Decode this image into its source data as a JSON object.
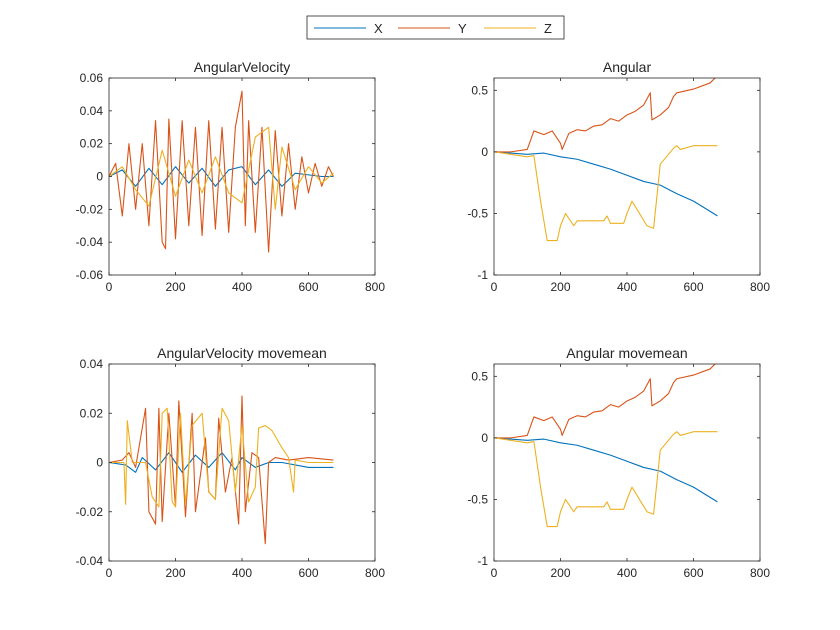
{
  "legend": {
    "placement": "top-center",
    "entries": [
      {
        "name": "X",
        "color": "#0072BD"
      },
      {
        "name": "Y",
        "color": "#D95319"
      },
      {
        "name": "Z",
        "color": "#EDB120"
      }
    ]
  },
  "chart_data": [
    {
      "type": "line",
      "title": "AngularVelocity",
      "xlim": [
        0,
        800
      ],
      "ylim": [
        -0.06,
        0.06
      ],
      "xticks": [
        0,
        200,
        400,
        600,
        800
      ],
      "xtick_labels": [
        "0",
        "200",
        "400",
        "600",
        "800"
      ],
      "yticks": [
        -0.06,
        -0.04,
        -0.02,
        0,
        0.02,
        0.04,
        0.06
      ],
      "ytick_labels": [
        "-0.06",
        "-0.04",
        "-0.02",
        "0",
        "0.02",
        "0.04",
        "0.06"
      ],
      "grid": false,
      "series": [
        {
          "name": "X",
          "color": "#0072BD",
          "x": [
            0,
            40,
            80,
            120,
            160,
            200,
            240,
            280,
            320,
            360,
            400,
            440,
            480,
            520,
            560,
            600,
            640,
            675
          ],
          "y": [
            0,
            0.004,
            -0.006,
            0.005,
            -0.005,
            0.006,
            -0.004,
            0.005,
            -0.006,
            0.004,
            0.006,
            -0.005,
            0.004,
            -0.006,
            0.002,
            0.001,
            0,
            0
          ]
        },
        {
          "name": "Y",
          "color": "#D95319",
          "x": [
            0,
            20,
            40,
            60,
            80,
            100,
            120,
            140,
            160,
            170,
            180,
            200,
            220,
            240,
            260,
            280,
            300,
            320,
            340,
            360,
            380,
            400,
            410,
            420,
            440,
            460,
            480,
            500,
            520,
            540,
            560,
            580,
            600,
            620,
            640,
            660,
            675
          ],
          "y": [
            0,
            0.008,
            -0.024,
            0.02,
            -0.02,
            0.02,
            -0.03,
            0.034,
            -0.04,
            -0.044,
            0.035,
            -0.038,
            0.034,
            -0.03,
            0.03,
            -0.036,
            0.034,
            -0.032,
            0.03,
            -0.034,
            0.03,
            0.052,
            -0.03,
            0.034,
            -0.034,
            0.03,
            -0.046,
            0.028,
            -0.024,
            0.02,
            -0.02,
            0.012,
            -0.01,
            0.008,
            -0.006,
            0.006,
            0
          ]
        },
        {
          "name": "Z",
          "color": "#EDB120",
          "x": [
            0,
            40,
            80,
            120,
            160,
            200,
            240,
            280,
            320,
            360,
            400,
            440,
            480,
            500,
            520,
            560,
            600,
            640,
            675
          ],
          "y": [
            0,
            0.006,
            -0.008,
            -0.018,
            0.016,
            -0.012,
            0.01,
            -0.01,
            0.012,
            -0.01,
            -0.016,
            0.024,
            0.03,
            -0.02,
            0.018,
            -0.008,
            0.006,
            -0.004,
            0.002
          ]
        }
      ]
    },
    {
      "type": "line",
      "title": "Angular",
      "xlim": [
        0,
        800
      ],
      "ylim": [
        -1,
        0.6
      ],
      "xticks": [
        0,
        200,
        400,
        600,
        800
      ],
      "xtick_labels": [
        "0",
        "200",
        "400",
        "600",
        "800"
      ],
      "yticks": [
        -1,
        -0.5,
        0,
        0.5
      ],
      "ytick_labels": [
        "-1",
        "-0.5",
        "0",
        "0.5"
      ],
      "grid": false,
      "series": [
        {
          "name": "X",
          "color": "#0072BD",
          "x": [
            0,
            50,
            100,
            150,
            200,
            250,
            300,
            350,
            400,
            450,
            500,
            550,
            600,
            672
          ],
          "y": [
            0,
            -0.01,
            -0.02,
            -0.01,
            -0.04,
            -0.06,
            -0.1,
            -0.14,
            -0.19,
            -0.24,
            -0.27,
            -0.34,
            -0.4,
            -0.52
          ]
        },
        {
          "name": "Y",
          "color": "#D95319",
          "x": [
            0,
            50,
            100,
            120,
            150,
            175,
            200,
            205,
            225,
            250,
            275,
            300,
            325,
            350,
            375,
            400,
            425,
            450,
            470,
            475,
            500,
            525,
            540,
            550,
            600,
            650,
            672
          ],
          "y": [
            0,
            0,
            0.02,
            0.17,
            0.14,
            0.17,
            0.07,
            0.02,
            0.15,
            0.18,
            0.17,
            0.21,
            0.22,
            0.27,
            0.25,
            0.3,
            0.33,
            0.38,
            0.48,
            0.26,
            0.3,
            0.36,
            0.45,
            0.48,
            0.51,
            0.56,
            0.62
          ]
        },
        {
          "name": "Z",
          "color": "#EDB120",
          "x": [
            0,
            100,
            120,
            140,
            160,
            190,
            200,
            215,
            240,
            250,
            330,
            340,
            350,
            390,
            400,
            415,
            460,
            480,
            500,
            540,
            550,
            560,
            600,
            672
          ],
          "y": [
            0,
            -0.04,
            -0.03,
            -0.4,
            -0.72,
            -0.72,
            -0.6,
            -0.5,
            -0.6,
            -0.56,
            -0.56,
            -0.52,
            -0.58,
            -0.58,
            -0.5,
            -0.4,
            -0.6,
            -0.62,
            -0.1,
            0.03,
            0.05,
            0.02,
            0.05,
            0.05
          ]
        }
      ]
    },
    {
      "type": "line",
      "title": "AngularVelocity movemean",
      "xlim": [
        0,
        800
      ],
      "ylim": [
        -0.04,
        0.04
      ],
      "xticks": [
        0,
        200,
        400,
        600,
        800
      ],
      "xtick_labels": [
        "0",
        "200",
        "400",
        "600",
        "800"
      ],
      "yticks": [
        -0.04,
        -0.02,
        0,
        0.02,
        0.04
      ],
      "ytick_labels": [
        "-0.04",
        "-0.02",
        "0",
        "0.02",
        "0.04"
      ],
      "grid": false,
      "series": [
        {
          "name": "X",
          "color": "#0072BD",
          "x": [
            0,
            50,
            80,
            100,
            140,
            180,
            220,
            260,
            300,
            340,
            380,
            400,
            440,
            480,
            520,
            560,
            600,
            675
          ],
          "y": [
            0,
            -0.001,
            -0.004,
            0.002,
            -0.003,
            0.004,
            -0.004,
            0.003,
            -0.002,
            0.004,
            -0.003,
            0.002,
            -0.002,
            0,
            0,
            -0.001,
            -0.002,
            -0.002
          ]
        },
        {
          "name": "Y",
          "color": "#D95319",
          "x": [
            0,
            40,
            60,
            80,
            110,
            120,
            140,
            150,
            160,
            180,
            200,
            210,
            230,
            250,
            260,
            290,
            300,
            320,
            330,
            350,
            370,
            390,
            400,
            410,
            430,
            450,
            470,
            480,
            500,
            540,
            600,
            675
          ],
          "y": [
            0,
            0.001,
            0.004,
            -0.002,
            0.022,
            -0.02,
            -0.025,
            0.022,
            -0.024,
            0.02,
            -0.018,
            0.025,
            -0.022,
            0.02,
            -0.02,
            0.01,
            -0.012,
            -0.015,
            0.018,
            -0.012,
            0.002,
            -0.025,
            0.027,
            -0.02,
            0.004,
            0.002,
            -0.033,
            0,
            0.002,
            0.001,
            0.002,
            0.001
          ]
        },
        {
          "name": "Z",
          "color": "#EDB120",
          "x": [
            0,
            45,
            50,
            55,
            70,
            110,
            130,
            150,
            160,
            175,
            190,
            200,
            215,
            230,
            250,
            280,
            300,
            320,
            340,
            360,
            380,
            400,
            420,
            440,
            450,
            470,
            490,
            520,
            540,
            555,
            560,
            600,
            675
          ],
          "y": [
            0,
            0,
            -0.017,
            0.017,
            0,
            0,
            -0.014,
            -0.018,
            0.02,
            0.022,
            -0.016,
            -0.018,
            0.02,
            -0.017,
            0.015,
            0.02,
            -0.012,
            -0.015,
            0.022,
            0.017,
            -0.012,
            0.015,
            -0.016,
            -0.01,
            0.014,
            0.015,
            0.013,
            0.006,
            0.002,
            -0.012,
            0.001,
            0,
            0
          ]
        }
      ]
    },
    {
      "type": "line",
      "title": "Angular movemean",
      "xlim": [
        0,
        800
      ],
      "ylim": [
        -1,
        0.6
      ],
      "xticks": [
        0,
        200,
        400,
        600,
        800
      ],
      "xtick_labels": [
        "0",
        "200",
        "400",
        "600",
        "800"
      ],
      "yticks": [
        -1,
        -0.5,
        0,
        0.5
      ],
      "ytick_labels": [
        "-1",
        "-0.5",
        "0",
        "0.5"
      ],
      "grid": false,
      "series": [
        {
          "name": "X",
          "color": "#0072BD",
          "x": [
            0,
            50,
            100,
            150,
            200,
            250,
            300,
            350,
            400,
            450,
            500,
            550,
            600,
            672
          ],
          "y": [
            0,
            -0.01,
            -0.02,
            -0.01,
            -0.04,
            -0.06,
            -0.1,
            -0.14,
            -0.19,
            -0.24,
            -0.27,
            -0.34,
            -0.4,
            -0.52
          ]
        },
        {
          "name": "Y",
          "color": "#D95319",
          "x": [
            0,
            50,
            100,
            120,
            150,
            175,
            200,
            205,
            225,
            250,
            275,
            300,
            325,
            350,
            375,
            400,
            425,
            450,
            470,
            475,
            500,
            525,
            540,
            550,
            600,
            650,
            672
          ],
          "y": [
            0,
            0,
            0.02,
            0.17,
            0.14,
            0.17,
            0.07,
            0.02,
            0.15,
            0.18,
            0.17,
            0.21,
            0.22,
            0.27,
            0.25,
            0.3,
            0.33,
            0.38,
            0.48,
            0.26,
            0.3,
            0.36,
            0.45,
            0.48,
            0.51,
            0.56,
            0.62
          ]
        },
        {
          "name": "Z",
          "color": "#EDB120",
          "x": [
            0,
            100,
            120,
            140,
            160,
            190,
            200,
            215,
            240,
            250,
            330,
            340,
            350,
            390,
            400,
            415,
            460,
            480,
            500,
            540,
            550,
            560,
            600,
            672
          ],
          "y": [
            0,
            -0.04,
            -0.03,
            -0.4,
            -0.72,
            -0.72,
            -0.6,
            -0.5,
            -0.6,
            -0.56,
            -0.56,
            -0.52,
            -0.58,
            -0.58,
            -0.5,
            -0.4,
            -0.6,
            -0.62,
            -0.1,
            0.03,
            0.05,
            0.02,
            0.05,
            0.05
          ]
        }
      ]
    }
  ]
}
